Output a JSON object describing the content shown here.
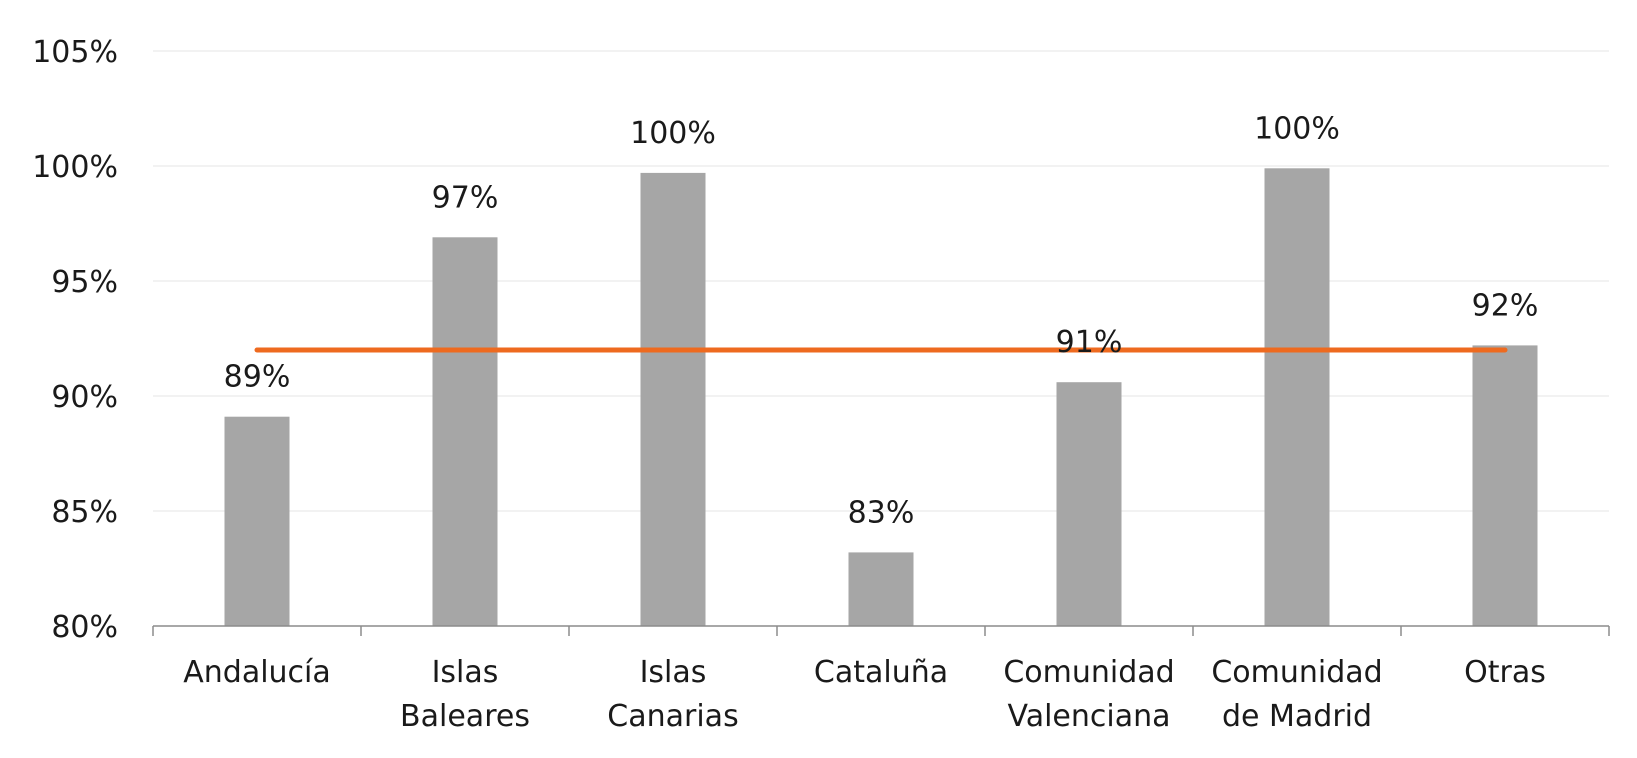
{
  "chart_data": {
    "type": "bar",
    "categories": [
      [
        "Andalucía"
      ],
      [
        "Islas",
        "Baleares"
      ],
      [
        "Islas",
        "Canarias"
      ],
      [
        "Cataluña"
      ],
      [
        "Comunidad",
        "Valenciana"
      ],
      [
        "Comunidad",
        "de Madrid"
      ],
      [
        "Otras"
      ]
    ],
    "values": [
      89.1,
      96.9,
      99.7,
      83.2,
      90.6,
      99.9,
      92.2
    ],
    "data_labels": [
      "89%",
      "97%",
      "100%",
      "83%",
      "91%",
      "100%",
      "92%"
    ],
    "reference_line": {
      "value": 92.0
    },
    "ylim": [
      80,
      105
    ],
    "yticks": [
      80,
      85,
      90,
      95,
      100,
      105
    ],
    "ytick_labels": [
      "80%",
      "85%",
      "90%",
      "95%",
      "100%",
      "105%"
    ],
    "title": "",
    "xlabel": "",
    "ylabel": "",
    "grid": true,
    "legend": "none",
    "colors": {
      "bar": "#a6a6a6",
      "line": "#ee6a1f",
      "grid": "#e6e6e6",
      "axis": "#8c8c8c",
      "text": "#1a1a1a"
    }
  }
}
